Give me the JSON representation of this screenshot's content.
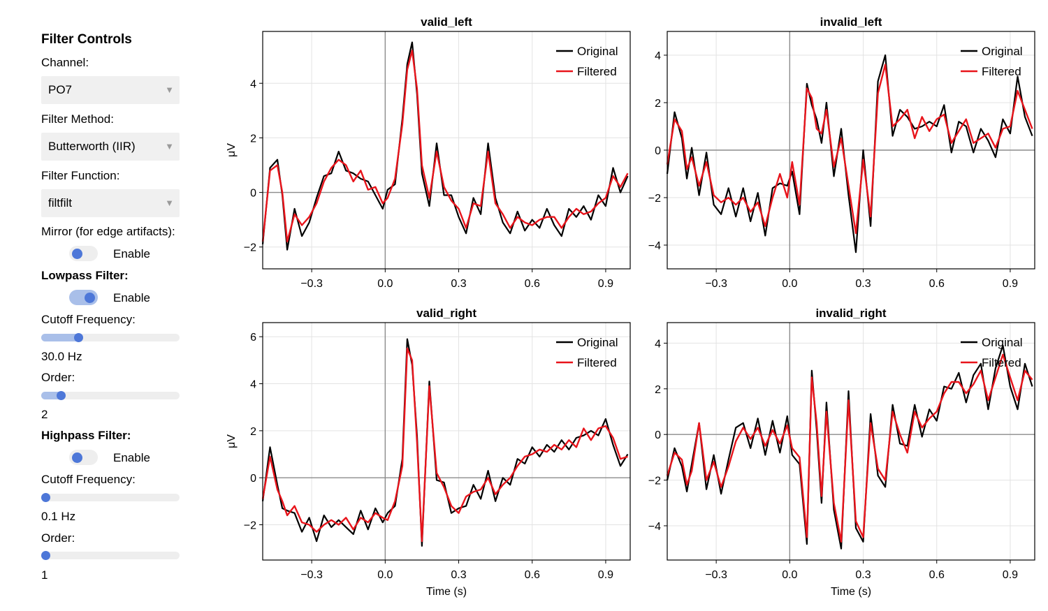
{
  "controls": {
    "heading": "Filter Controls",
    "channel_label": "Channel:",
    "channel_value": "PO7",
    "method_label": "Filter Method:",
    "method_value": "Butterworth (IIR)",
    "function_label": "Filter Function:",
    "function_value": "filtfilt",
    "mirror_label": "Mirror (for edge artifacts):",
    "mirror_enable_label": "Enable",
    "mirror_enabled": false,
    "lowpass_heading": "Lowpass Filter:",
    "lowpass_enable_label": "Enable",
    "lowpass_enabled": true,
    "lowpass_cutoff_label": "Cutoff Frequency:",
    "lowpass_cutoff_fraction": 0.27,
    "lowpass_cutoff_value": "30.0 Hz",
    "lowpass_order_label": "Order:",
    "lowpass_order_fraction": 0.14,
    "lowpass_order_value": "2",
    "highpass_heading": "Highpass Filter:",
    "highpass_enable_label": "Enable",
    "highpass_enabled": false,
    "highpass_cutoff_label": "Cutoff Frequency:",
    "highpass_cutoff_fraction": 0.0,
    "highpass_cutoff_value": "0.1 Hz",
    "highpass_order_label": "Order:",
    "highpass_order_fraction": 0.0,
    "highpass_order_value": "1"
  },
  "colors": {
    "original": "#000000",
    "filtered": "#e8141b",
    "accent": "#4d77d8"
  },
  "chart_data": [
    {
      "type": "line",
      "title": "valid_left",
      "xlabel": "",
      "ylabel": "μV",
      "xlim": [
        -0.5,
        1.0
      ],
      "ylim": [
        -2.8,
        5.9
      ],
      "xticks": [
        -0.3,
        0.0,
        0.3,
        0.6,
        0.9
      ],
      "xtick_labels": [
        "−0.3",
        "0.0",
        "0.3",
        "0.6",
        "0.9"
      ],
      "yticks": [
        -2,
        0,
        2,
        4
      ],
      "ytick_labels": [
        "−2",
        "0",
        "2",
        "4"
      ],
      "legend": [
        "Original",
        "Filtered"
      ],
      "legend_position": "top-right",
      "x": [
        -0.5,
        -0.47,
        -0.44,
        -0.42,
        -0.4,
        -0.37,
        -0.34,
        -0.31,
        -0.28,
        -0.25,
        -0.22,
        -0.19,
        -0.16,
        -0.13,
        -0.1,
        -0.07,
        -0.04,
        -0.01,
        0.01,
        0.04,
        0.07,
        0.09,
        0.11,
        0.13,
        0.15,
        0.18,
        0.21,
        0.24,
        0.27,
        0.3,
        0.33,
        0.36,
        0.39,
        0.42,
        0.45,
        0.48,
        0.51,
        0.54,
        0.57,
        0.6,
        0.63,
        0.66,
        0.69,
        0.72,
        0.75,
        0.78,
        0.81,
        0.84,
        0.87,
        0.9,
        0.93,
        0.96,
        0.99
      ],
      "series": [
        {
          "name": "Filtered",
          "values": [
            -1.8,
            0.8,
            1.0,
            0.0,
            -1.8,
            -0.8,
            -1.2,
            -0.9,
            -0.4,
            0.4,
            0.9,
            1.2,
            1.0,
            0.4,
            0.8,
            0.1,
            0.2,
            -0.4,
            -0.2,
            0.5,
            2.5,
            4.5,
            5.2,
            3.8,
            1.0,
            -0.2,
            1.5,
            0.2,
            -0.3,
            -0.6,
            -1.3,
            -0.4,
            -0.5,
            1.5,
            -0.4,
            -0.8,
            -1.3,
            -0.9,
            -1.1,
            -1.2,
            -1.0,
            -0.9,
            -0.9,
            -1.3,
            -0.9,
            -0.6,
            -0.8,
            -0.7,
            -0.4,
            -0.2,
            0.6,
            0.2,
            0.7
          ]
        },
        {
          "name": "Original",
          "values": [
            -1.9,
            0.9,
            1.2,
            -0.1,
            -2.1,
            -0.6,
            -1.6,
            -1.1,
            -0.2,
            0.6,
            0.7,
            1.5,
            0.8,
            0.7,
            0.5,
            0.4,
            -0.1,
            -0.6,
            0.1,
            0.3,
            2.7,
            4.7,
            5.5,
            3.6,
            0.7,
            -0.5,
            1.8,
            -0.1,
            -0.1,
            -0.9,
            -1.5,
            -0.2,
            -0.8,
            1.8,
            -0.2,
            -1.1,
            -1.5,
            -0.7,
            -1.4,
            -1.0,
            -1.3,
            -0.6,
            -1.2,
            -1.6,
            -0.6,
            -0.9,
            -0.5,
            -1.0,
            -0.1,
            -0.5,
            0.9,
            0.0,
            0.6
          ]
        }
      ]
    },
    {
      "type": "line",
      "title": "invalid_left",
      "xlabel": "",
      "ylabel": "",
      "xlim": [
        -0.5,
        1.0
      ],
      "ylim": [
        -5.0,
        5.0
      ],
      "xticks": [
        -0.3,
        0.0,
        0.3,
        0.6,
        0.9
      ],
      "xtick_labels": [
        "−0.3",
        "0.0",
        "0.3",
        "0.6",
        "0.9"
      ],
      "yticks": [
        -4,
        -2,
        0,
        2,
        4
      ],
      "ytick_labels": [
        "−4",
        "−2",
        "0",
        "2",
        "4"
      ],
      "legend": [
        "Original",
        "Filtered"
      ],
      "legend_position": "top-right",
      "x": [
        -0.5,
        -0.47,
        -0.44,
        -0.42,
        -0.4,
        -0.37,
        -0.34,
        -0.31,
        -0.28,
        -0.25,
        -0.22,
        -0.19,
        -0.16,
        -0.13,
        -0.1,
        -0.07,
        -0.04,
        -0.01,
        0.01,
        0.04,
        0.07,
        0.09,
        0.11,
        0.13,
        0.15,
        0.18,
        0.21,
        0.24,
        0.27,
        0.3,
        0.33,
        0.36,
        0.39,
        0.42,
        0.45,
        0.48,
        0.51,
        0.54,
        0.57,
        0.6,
        0.63,
        0.66,
        0.69,
        0.72,
        0.75,
        0.78,
        0.81,
        0.84,
        0.87,
        0.9,
        0.93,
        0.96,
        0.99
      ],
      "series": [
        {
          "name": "Filtered",
          "values": [
            -0.6,
            1.3,
            0.8,
            -0.8,
            -0.3,
            -1.5,
            -0.5,
            -1.9,
            -2.2,
            -2.0,
            -2.3,
            -2.0,
            -2.6,
            -2.2,
            -3.2,
            -2.0,
            -1.0,
            -2.0,
            -0.5,
            -2.3,
            2.6,
            2.2,
            0.9,
            0.7,
            1.7,
            -0.7,
            0.5,
            -1.5,
            -3.5,
            -0.4,
            -2.8,
            2.4,
            3.6,
            1.0,
            1.3,
            1.7,
            0.5,
            1.4,
            0.8,
            1.3,
            1.5,
            0.3,
            0.8,
            1.3,
            0.3,
            0.5,
            0.7,
            0.1,
            0.9,
            1.0,
            2.5,
            1.7,
            0.9
          ]
        },
        {
          "name": "Original",
          "values": [
            -1.0,
            1.6,
            0.5,
            -1.2,
            0.1,
            -1.9,
            -0.1,
            -2.3,
            -2.7,
            -1.6,
            -2.8,
            -1.6,
            -3.0,
            -1.8,
            -3.6,
            -1.6,
            -1.4,
            -1.5,
            -0.9,
            -2.7,
            2.8,
            1.9,
            1.3,
            0.3,
            2.0,
            -1.1,
            0.9,
            -1.9,
            -4.3,
            0.0,
            -3.2,
            2.9,
            4.0,
            0.6,
            1.7,
            1.4,
            0.9,
            1.0,
            1.2,
            1.0,
            1.9,
            -0.1,
            1.2,
            1.0,
            -0.1,
            0.9,
            0.4,
            -0.3,
            1.3,
            0.7,
            3.1,
            1.4,
            0.6
          ]
        }
      ]
    },
    {
      "type": "line",
      "title": "valid_right",
      "xlabel": "Time (s)",
      "ylabel": "μV",
      "xlim": [
        -0.5,
        1.0
      ],
      "ylim": [
        -3.5,
        6.6
      ],
      "xticks": [
        -0.3,
        0.0,
        0.3,
        0.6,
        0.9
      ],
      "xtick_labels": [
        "−0.3",
        "0.0",
        "0.3",
        "0.6",
        "0.9"
      ],
      "yticks": [
        -2,
        0,
        2,
        4,
        6
      ],
      "ytick_labels": [
        "−2",
        "0",
        "2",
        "4",
        "6"
      ],
      "legend": [
        "Original",
        "Filtered"
      ],
      "legend_position": "top-right",
      "x": [
        -0.5,
        -0.47,
        -0.44,
        -0.42,
        -0.4,
        -0.37,
        -0.34,
        -0.31,
        -0.28,
        -0.25,
        -0.22,
        -0.19,
        -0.16,
        -0.13,
        -0.1,
        -0.07,
        -0.04,
        -0.01,
        0.01,
        0.04,
        0.07,
        0.09,
        0.11,
        0.13,
        0.15,
        0.18,
        0.21,
        0.24,
        0.27,
        0.3,
        0.33,
        0.36,
        0.39,
        0.42,
        0.45,
        0.48,
        0.51,
        0.54,
        0.57,
        0.6,
        0.63,
        0.66,
        0.69,
        0.72,
        0.75,
        0.78,
        0.81,
        0.84,
        0.87,
        0.9,
        0.93,
        0.96,
        0.99
      ],
      "series": [
        {
          "name": "Filtered",
          "values": [
            -0.9,
            0.9,
            -0.5,
            -1.0,
            -1.6,
            -1.2,
            -1.9,
            -2.0,
            -2.3,
            -2.0,
            -1.8,
            -2.0,
            -1.7,
            -2.2,
            -1.7,
            -1.9,
            -1.5,
            -1.7,
            -1.8,
            -1.0,
            0.5,
            5.5,
            5.0,
            1.5,
            -2.7,
            3.9,
            0.2,
            -0.4,
            -1.2,
            -1.5,
            -0.8,
            -0.6,
            -0.5,
            0.0,
            -0.7,
            -0.3,
            0.0,
            0.5,
            0.9,
            1.0,
            1.2,
            1.1,
            1.4,
            1.2,
            1.6,
            1.3,
            2.1,
            1.6,
            2.1,
            2.2,
            1.7,
            0.8,
            0.9
          ]
        },
        {
          "name": "Original",
          "values": [
            -1.0,
            1.3,
            -0.3,
            -1.3,
            -1.4,
            -1.5,
            -2.3,
            -1.7,
            -2.7,
            -1.6,
            -2.1,
            -1.8,
            -2.1,
            -2.4,
            -1.4,
            -2.2,
            -1.3,
            -1.9,
            -1.5,
            -1.2,
            0.8,
            5.9,
            4.8,
            1.8,
            -2.9,
            4.1,
            -0.1,
            -0.2,
            -1.5,
            -1.3,
            -1.2,
            -0.3,
            -0.9,
            0.3,
            -1.0,
            0.0,
            -0.3,
            0.8,
            0.6,
            1.3,
            0.9,
            1.4,
            1.1,
            1.6,
            1.2,
            1.7,
            1.8,
            2.0,
            1.8,
            2.5,
            1.4,
            0.5,
            1.0
          ]
        }
      ]
    },
    {
      "type": "line",
      "title": "invalid_right",
      "xlabel": "Time (s)",
      "ylabel": "",
      "xlim": [
        -0.5,
        1.0
      ],
      "ylim": [
        -5.5,
        4.9
      ],
      "xticks": [
        -0.3,
        0.0,
        0.3,
        0.6,
        0.9
      ],
      "xtick_labels": [
        "−0.3",
        "0.0",
        "0.3",
        "0.6",
        "0.9"
      ],
      "yticks": [
        -4,
        -2,
        0,
        2,
        4
      ],
      "ytick_labels": [
        "−4",
        "−2",
        "0",
        "2",
        "4"
      ],
      "legend": [
        "Original",
        "Filtered"
      ],
      "legend_position": "top-right",
      "x": [
        -0.5,
        -0.47,
        -0.44,
        -0.42,
        -0.4,
        -0.37,
        -0.34,
        -0.31,
        -0.28,
        -0.25,
        -0.22,
        -0.19,
        -0.16,
        -0.13,
        -0.1,
        -0.07,
        -0.04,
        -0.01,
        0.01,
        0.04,
        0.07,
        0.09,
        0.11,
        0.13,
        0.15,
        0.18,
        0.21,
        0.24,
        0.27,
        0.3,
        0.33,
        0.36,
        0.39,
        0.42,
        0.45,
        0.48,
        0.51,
        0.54,
        0.57,
        0.6,
        0.63,
        0.66,
        0.69,
        0.72,
        0.75,
        0.78,
        0.81,
        0.84,
        0.87,
        0.9,
        0.93,
        0.96,
        0.99
      ],
      "series": [
        {
          "name": "Filtered",
          "values": [
            -1.8,
            -0.8,
            -1.1,
            -2.2,
            -1.6,
            0.5,
            -2.0,
            -1.2,
            -2.3,
            -1.4,
            -0.3,
            0.3,
            -0.2,
            0.3,
            -0.5,
            0.2,
            -0.4,
            0.4,
            -0.6,
            -1.0,
            -4.5,
            2.5,
            0.5,
            -2.7,
            1.0,
            -3.0,
            -4.7,
            1.5,
            -3.8,
            -4.5,
            0.5,
            -1.5,
            -2.0,
            1.0,
            0.0,
            -0.8,
            1.0,
            0.3,
            0.7,
            1.0,
            1.8,
            2.3,
            2.3,
            1.8,
            2.2,
            2.8,
            1.5,
            2.5,
            3.5,
            2.5,
            1.5,
            2.8,
            2.4
          ]
        },
        {
          "name": "Original",
          "values": [
            -2.0,
            -0.6,
            -1.4,
            -2.5,
            -1.3,
            0.5,
            -2.4,
            -0.9,
            -2.6,
            -1.1,
            0.3,
            0.5,
            -0.6,
            0.7,
            -0.9,
            0.6,
            -0.8,
            0.8,
            -0.9,
            -1.3,
            -4.8,
            2.8,
            0.2,
            -3.0,
            1.4,
            -3.3,
            -5.0,
            1.9,
            -4.1,
            -4.7,
            0.9,
            -1.8,
            -2.3,
            1.3,
            -0.4,
            -0.5,
            1.3,
            -0.1,
            1.1,
            0.6,
            2.1,
            2.0,
            2.7,
            1.4,
            2.6,
            3.1,
            1.1,
            2.9,
            3.9,
            2.1,
            1.1,
            3.1,
            2.1
          ]
        }
      ]
    }
  ]
}
